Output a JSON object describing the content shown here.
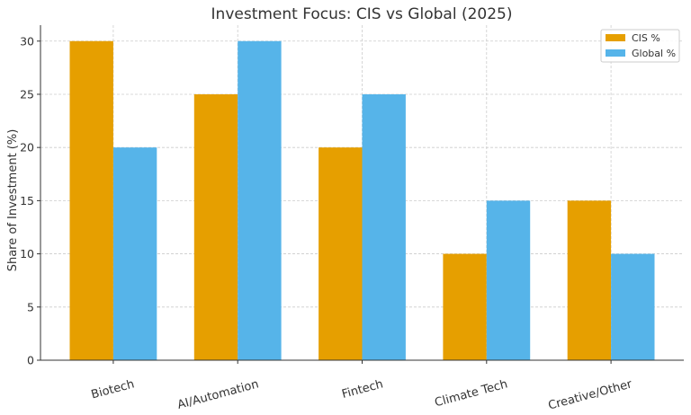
{
  "chart_data": {
    "type": "bar",
    "title": "Investment Focus: CIS vs Global (2025)",
    "xlabel": "",
    "ylabel": "Share of Investment (%)",
    "categories": [
      "Biotech",
      "AI/Automation",
      "Fintech",
      "Climate Tech",
      "Creative/Other"
    ],
    "series": [
      {
        "name": "CIS %",
        "values": [
          30,
          25,
          20,
          10,
          15
        ],
        "color": "#E69F00"
      },
      {
        "name": "Global %",
        "values": [
          20,
          30,
          25,
          15,
          10
        ],
        "color": "#56B4E9"
      }
    ],
    "ylim": [
      0,
      31.5
    ],
    "yticks": [
      0,
      5,
      10,
      15,
      20,
      25,
      30
    ],
    "grid": true,
    "legend": "top-right"
  }
}
